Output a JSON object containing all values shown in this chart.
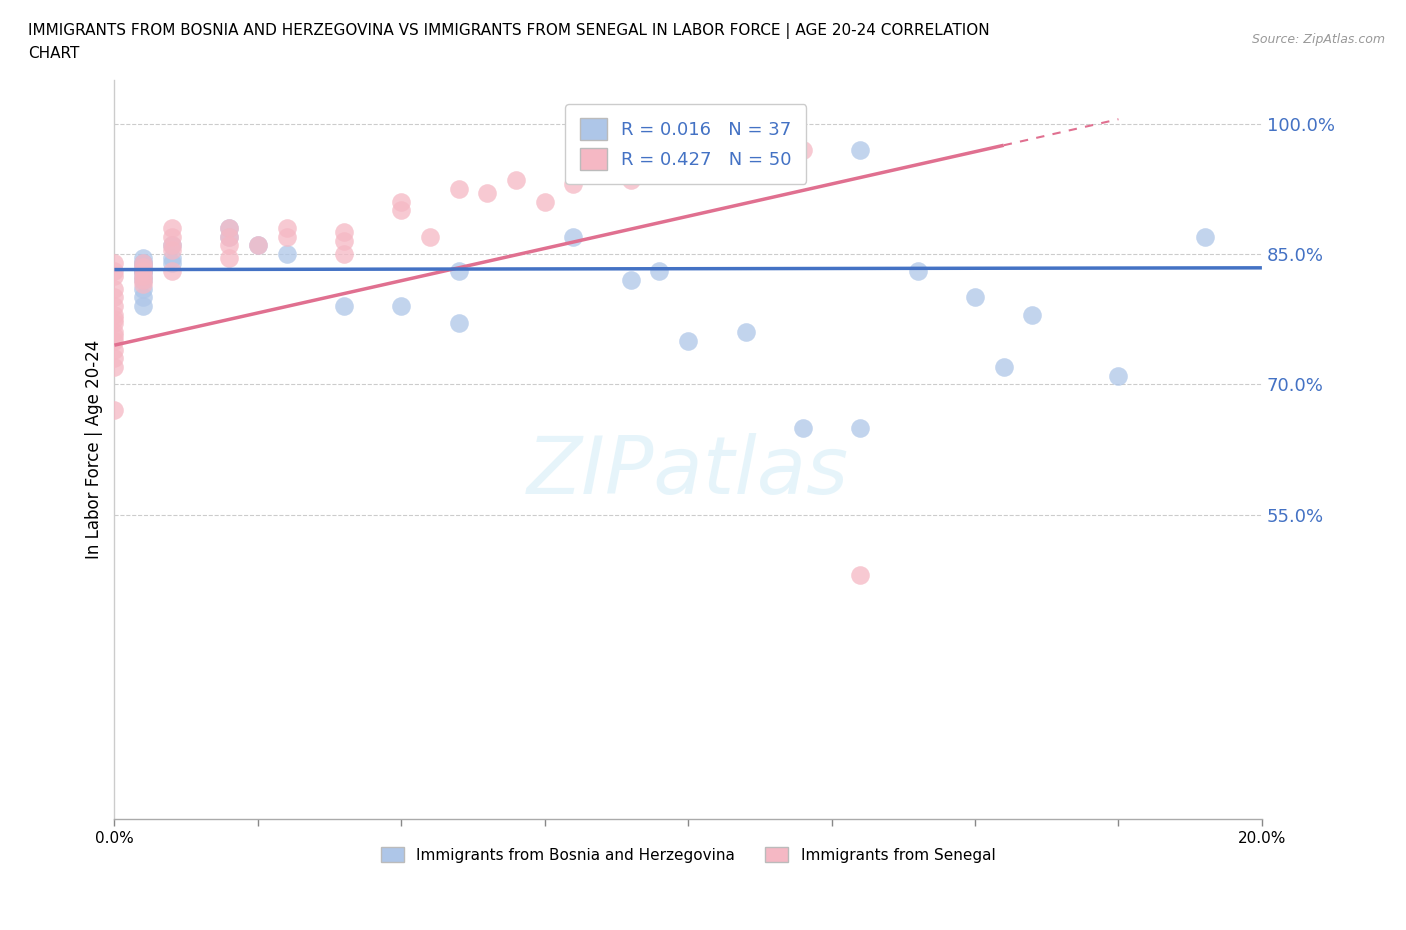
{
  "title_line1": "IMMIGRANTS FROM BOSNIA AND HERZEGOVINA VS IMMIGRANTS FROM SENEGAL IN LABOR FORCE | AGE 20-24 CORRELATION",
  "title_line2": "CHART",
  "source": "Source: ZipAtlas.com",
  "ylabel": "In Labor Force | Age 20-24",
  "xlim": [
    0.0,
    0.2
  ],
  "ylim": [
    0.2,
    1.05
  ],
  "yticks": [
    0.55,
    0.7,
    0.85,
    1.0
  ],
  "ytick_labels": [
    "55.0%",
    "70.0%",
    "85.0%",
    "100.0%"
  ],
  "xticks": [
    0.0,
    0.025,
    0.05,
    0.075,
    0.1,
    0.125,
    0.15,
    0.175,
    0.2
  ],
  "xtick_labels": [
    "0.0%",
    "",
    "",
    "",
    "",
    "",
    "",
    "",
    "20.0%"
  ],
  "bosnia_color": "#aec6e8",
  "senegal_color": "#f5b8c4",
  "bosnia_line_color": "#4472c4",
  "senegal_line_color": "#e07090",
  "watermark_text": "ZIPatlas",
  "legend_R_bosnia": "R = 0.016",
  "legend_N_bosnia": "N = 37",
  "legend_R_senegal": "R = 0.427",
  "legend_N_senegal": "N = 50",
  "bosnia_scatter_x": [
    0.13,
    0.005,
    0.005,
    0.005,
    0.01,
    0.01,
    0.005,
    0.005,
    0.005,
    0.005,
    0.005,
    0.005,
    0.005,
    0.005,
    0.005,
    0.01,
    0.02,
    0.02,
    0.025,
    0.03,
    0.04,
    0.05,
    0.06,
    0.06,
    0.08,
    0.09,
    0.095,
    0.1,
    0.11,
    0.12,
    0.13,
    0.14,
    0.15,
    0.155,
    0.16,
    0.175,
    0.19
  ],
  "bosnia_scatter_y": [
    0.97,
    0.84,
    0.83,
    0.83,
    0.845,
    0.84,
    0.83,
    0.845,
    0.84,
    0.835,
    0.825,
    0.82,
    0.81,
    0.8,
    0.79,
    0.86,
    0.88,
    0.87,
    0.86,
    0.85,
    0.79,
    0.79,
    0.83,
    0.77,
    0.87,
    0.82,
    0.83,
    0.75,
    0.76,
    0.65,
    0.65,
    0.83,
    0.8,
    0.72,
    0.78,
    0.71,
    0.87
  ],
  "senegal_scatter_x": [
    0.0,
    0.0,
    0.0,
    0.0,
    0.0,
    0.0,
    0.0,
    0.0,
    0.0,
    0.0,
    0.0,
    0.0,
    0.0,
    0.0,
    0.0,
    0.0,
    0.005,
    0.005,
    0.005,
    0.005,
    0.005,
    0.005,
    0.01,
    0.01,
    0.01,
    0.01,
    0.01,
    0.02,
    0.02,
    0.02,
    0.02,
    0.025,
    0.03,
    0.03,
    0.04,
    0.04,
    0.04,
    0.05,
    0.05,
    0.055,
    0.06,
    0.065,
    0.07,
    0.075,
    0.08,
    0.09,
    0.1,
    0.11,
    0.12,
    0.13
  ],
  "senegal_scatter_y": [
    0.84,
    0.83,
    0.825,
    0.81,
    0.8,
    0.79,
    0.78,
    0.775,
    0.77,
    0.76,
    0.755,
    0.75,
    0.74,
    0.73,
    0.72,
    0.67,
    0.84,
    0.835,
    0.83,
    0.825,
    0.82,
    0.815,
    0.855,
    0.87,
    0.88,
    0.86,
    0.83,
    0.88,
    0.87,
    0.86,
    0.845,
    0.86,
    0.88,
    0.87,
    0.865,
    0.85,
    0.875,
    0.9,
    0.91,
    0.87,
    0.925,
    0.92,
    0.935,
    0.91,
    0.93,
    0.935,
    0.945,
    0.98,
    0.97,
    0.48
  ],
  "bosnia_trend_x": [
    0.0,
    0.2
  ],
  "bosnia_trend_y": [
    0.832,
    0.834
  ],
  "senegal_trend_x": [
    0.0,
    0.155
  ],
  "senegal_trend_y": [
    0.745,
    0.975
  ]
}
